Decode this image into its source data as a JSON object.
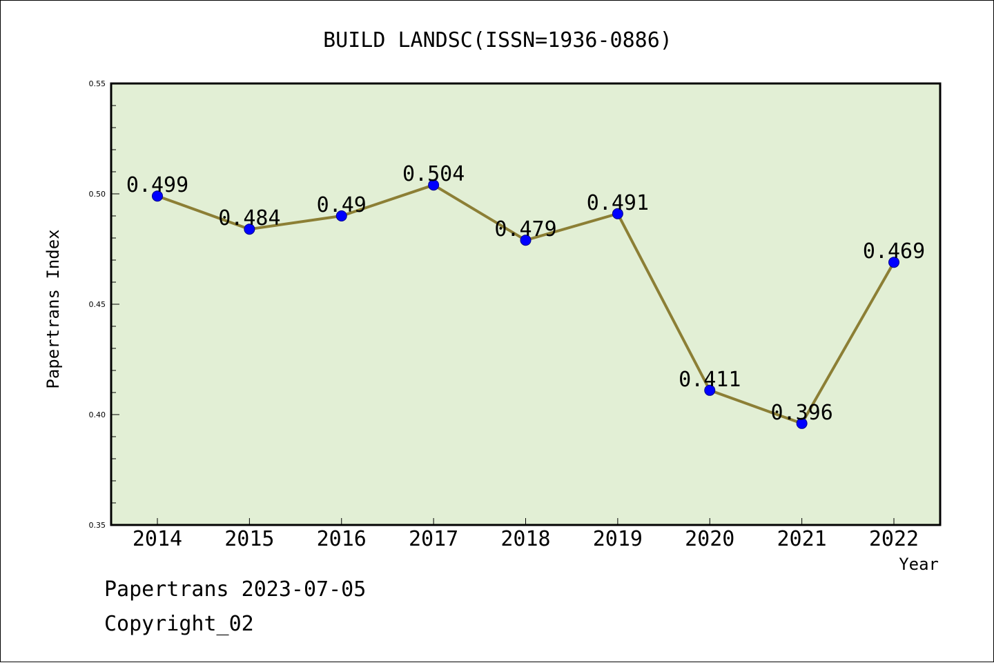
{
  "chart_data": {
    "type": "line",
    "title": "BUILD LANDSC(ISSN=1936-0886)",
    "xlabel": "Year",
    "ylabel": "Papertrans Index",
    "categories": [
      "2014",
      "2015",
      "2016",
      "2017",
      "2018",
      "2019",
      "2020",
      "2021",
      "2022"
    ],
    "values": [
      0.499,
      0.484,
      0.49,
      0.504,
      0.479,
      0.491,
      0.411,
      0.396,
      0.469
    ],
    "data_labels": [
      "0.499",
      "0.484",
      "0.49",
      "0.504",
      "0.479",
      "0.491",
      "0.411",
      "0.396",
      "0.469"
    ],
    "ylim": [
      0.35,
      0.55
    ],
    "yticks": [
      "0.35",
      "0.40",
      "0.45",
      "0.50",
      "0.55"
    ],
    "grid": false,
    "colors": {
      "plot_background": "#e2efd5",
      "line": "#8c7f35",
      "marker": "#0000ff"
    }
  },
  "footer": {
    "date_line": "Papertrans 2023-07-05",
    "copyright": "Copyright_02"
  }
}
